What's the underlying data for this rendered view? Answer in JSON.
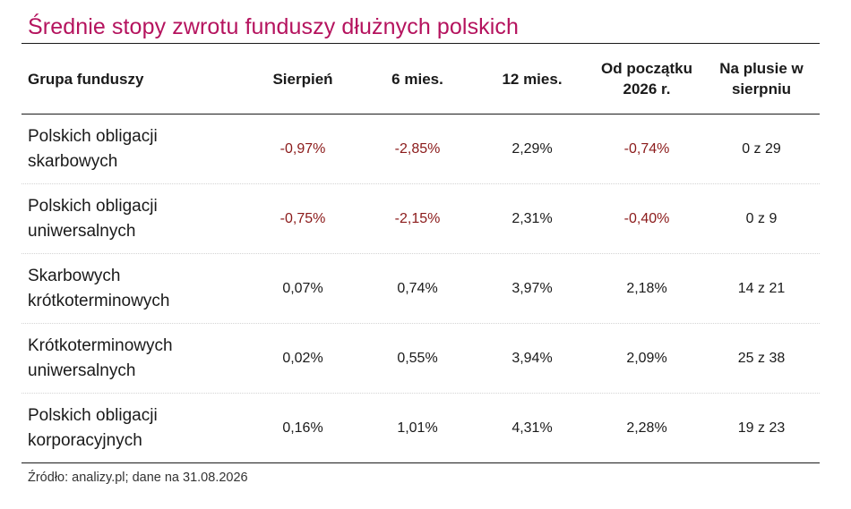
{
  "title": "Średnie stopy zwrotu funduszy dłużnych polskich",
  "columns": [
    {
      "line1": "Grupa funduszy",
      "line2": ""
    },
    {
      "line1": "Sierpień",
      "line2": ""
    },
    {
      "line1": "6 mies.",
      "line2": ""
    },
    {
      "line1": "12 mies.",
      "line2": ""
    },
    {
      "line1": "Od początku",
      "line2": "2026 r."
    },
    {
      "line1": "Na plusie w",
      "line2": "sierpniu"
    }
  ],
  "rows": [
    {
      "name1": "Polskich obligacji",
      "name2": "skarbowych",
      "sierpien": "-0,97%",
      "m6": "-2,85%",
      "m12": "2,29%",
      "ytd": "-0,74%",
      "plus": "0 z 29"
    },
    {
      "name1": "Polskich obligacji",
      "name2": "uniwersalnych",
      "sierpien": "-0,75%",
      "m6": "-2,15%",
      "m12": "2,31%",
      "ytd": "-0,40%",
      "plus": "0 z 9"
    },
    {
      "name1": "Skarbowych",
      "name2": "krótkoterminowych",
      "sierpien": "0,07%",
      "m6": "0,74%",
      "m12": "3,97%",
      "ytd": "2,18%",
      "plus": "14 z 21"
    },
    {
      "name1": "Krótkoterminowych",
      "name2": "uniwersalnych",
      "sierpien": "0,02%",
      "m6": "0,55%",
      "m12": "3,94%",
      "ytd": "2,09%",
      "plus": "25 z 38"
    },
    {
      "name1": "Polskich obligacji",
      "name2": "korporacyjnych",
      "sierpien": "0,16%",
      "m6": "1,01%",
      "m12": "4,31%",
      "ytd": "2,28%",
      "plus": "19 z 23"
    }
  ],
  "source": "Źródło: analizy.pl; dane na 31.08.2026",
  "colors": {
    "title": "#b5135e",
    "negative": "#8b1a1a",
    "text": "#1a1a1a"
  }
}
